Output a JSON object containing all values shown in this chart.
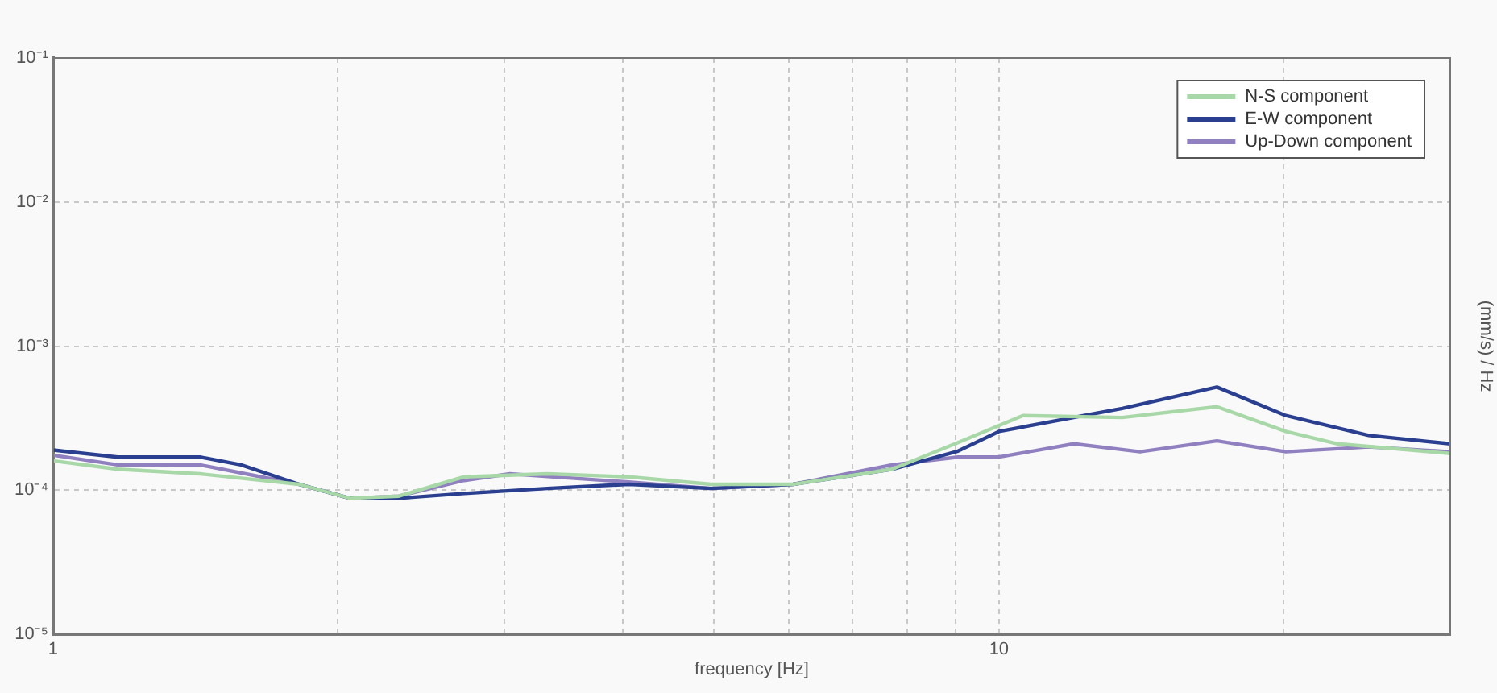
{
  "chart_data": {
    "type": "line",
    "xlabel": "frequency [Hz]",
    "ylabel": "(mm/s) / Hz",
    "log": "xy",
    "grid": true,
    "legend": "top right",
    "marker": "none",
    "line_style": "solid",
    "xlim": [
      1,
      30
    ],
    "xticks": [
      1,
      {
        "value": 2,
        "label": null
      },
      {
        "value": 3,
        "label": null
      },
      {
        "value": 4,
        "label": null
      },
      {
        "value": 5,
        "label": null
      },
      {
        "value": 6,
        "label": null
      },
      {
        "value": 7,
        "label": null
      },
      {
        "value": 8,
        "label": null
      },
      {
        "value": 9,
        "label": null
      },
      10,
      {
        "value": 20,
        "label": null
      }
    ],
    "ylim": [
      1e-05,
      0.1
    ],
    "yticks": [
      {
        "value": 1e-05,
        "label": "10⁻⁵"
      },
      {
        "value": 0.0001,
        "label": "10⁻⁴"
      },
      {
        "value": 0.001,
        "label": "10⁻³"
      },
      {
        "value": 0.01,
        "label": "10⁻²"
      },
      {
        "value": 0.1,
        "label": "10⁻¹"
      }
    ],
    "series": [
      {
        "name": "N-S component",
        "color": "#a8d8a8",
        "x": [
          1,
          1.17,
          1.43,
          1.82,
          2.06,
          2.32,
          2.72,
          3.33,
          4.06,
          4.96,
          6.06,
          7.71,
          9.05,
          10.6,
          13.5,
          17,
          20.1,
          22.8,
          30
        ],
        "values": [
          0.00016,
          0.00014,
          0.00013,
          0.00011,
          8.8e-05,
          9.1e-05,
          0.000124,
          0.00013,
          0.000124,
          0.00011,
          0.00011,
          0.00014,
          0.000214,
          0.00033,
          0.00032,
          0.00038,
          0.000256,
          0.00021,
          0.00018
        ]
      },
      {
        "name": "E-W component",
        "color": "#2a3f8f",
        "x": [
          1,
          1.17,
          1.43,
          1.58,
          1.82,
          2.06,
          2.32,
          2.72,
          3.33,
          4.06,
          4.96,
          6.06,
          7.71,
          9.05,
          10,
          13.5,
          17,
          20.1,
          24.6,
          30
        ],
        "values": [
          0.00019,
          0.00017,
          0.00017,
          0.00015,
          0.00011,
          8.8e-05,
          8.8e-05,
          9.5e-05,
          0.000103,
          0.00011,
          0.000103,
          0.00011,
          0.00014,
          0.000187,
          0.000256,
          0.00037,
          0.00052,
          0.00033,
          0.00024,
          0.00021
        ]
      },
      {
        "name": "Up-Down component",
        "color": "#9080c0",
        "x": [
          1,
          1.17,
          1.43,
          1.82,
          2.06,
          2.32,
          2.72,
          3.04,
          4.06,
          4.96,
          6.06,
          7.71,
          9.05,
          10,
          12,
          14.1,
          17,
          20.1,
          24.6,
          30
        ],
        "values": [
          0.000175,
          0.00015,
          0.00015,
          0.00011,
          8.8e-05,
          9.1e-05,
          0.000117,
          0.00013,
          0.000114,
          0.000103,
          0.00011,
          0.00015,
          0.00017,
          0.00017,
          0.00021,
          0.000185,
          0.00022,
          0.000185,
          0.0002,
          0.000185
        ]
      }
    ]
  }
}
